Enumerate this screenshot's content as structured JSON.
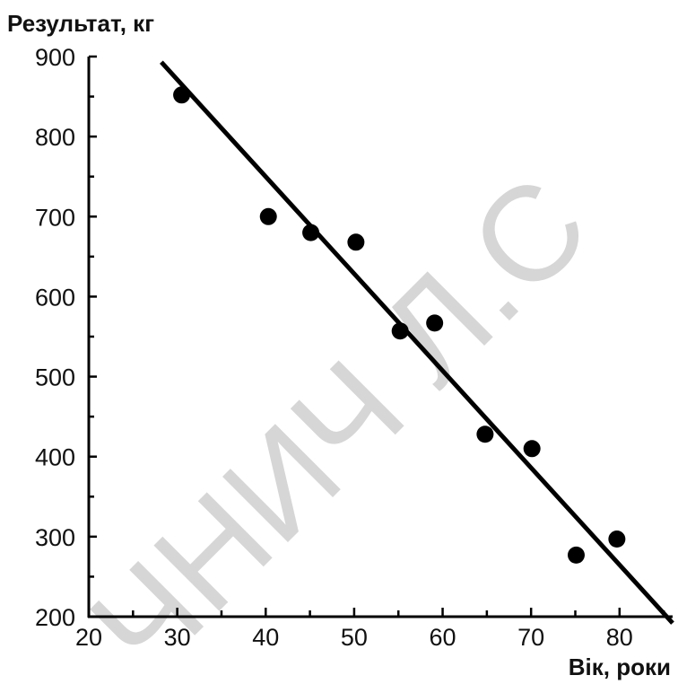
{
  "chart_data": {
    "type": "scatter",
    "title": "",
    "xlabel": "Вік, роки",
    "ylabel": "Результат, кг",
    "xlim": [
      20,
      86
    ],
    "ylim": [
      200,
      900
    ],
    "x_ticks": [
      20,
      30,
      40,
      50,
      60,
      70,
      80
    ],
    "y_ticks": [
      200,
      300,
      400,
      500,
      600,
      700,
      800,
      900
    ],
    "grid": false,
    "legend": "none",
    "series": [
      {
        "type": "scatter",
        "x": [
          30.5,
          40.3,
          45.1,
          50.2,
          55.2,
          59.1,
          64.8,
          70.1,
          75.1,
          79.7
        ],
        "y": [
          852,
          700,
          680,
          668,
          557,
          567,
          428,
          410,
          277,
          297
        ]
      }
    ],
    "trendline": {
      "x": [
        28.2,
        86
      ],
      "y": [
        893,
        192
      ]
    },
    "colors": {
      "marks": "#000000",
      "watermark": "#d6d6d6"
    }
  },
  "watermark": {
    "text": "ЧНИЧ Л.С"
  }
}
